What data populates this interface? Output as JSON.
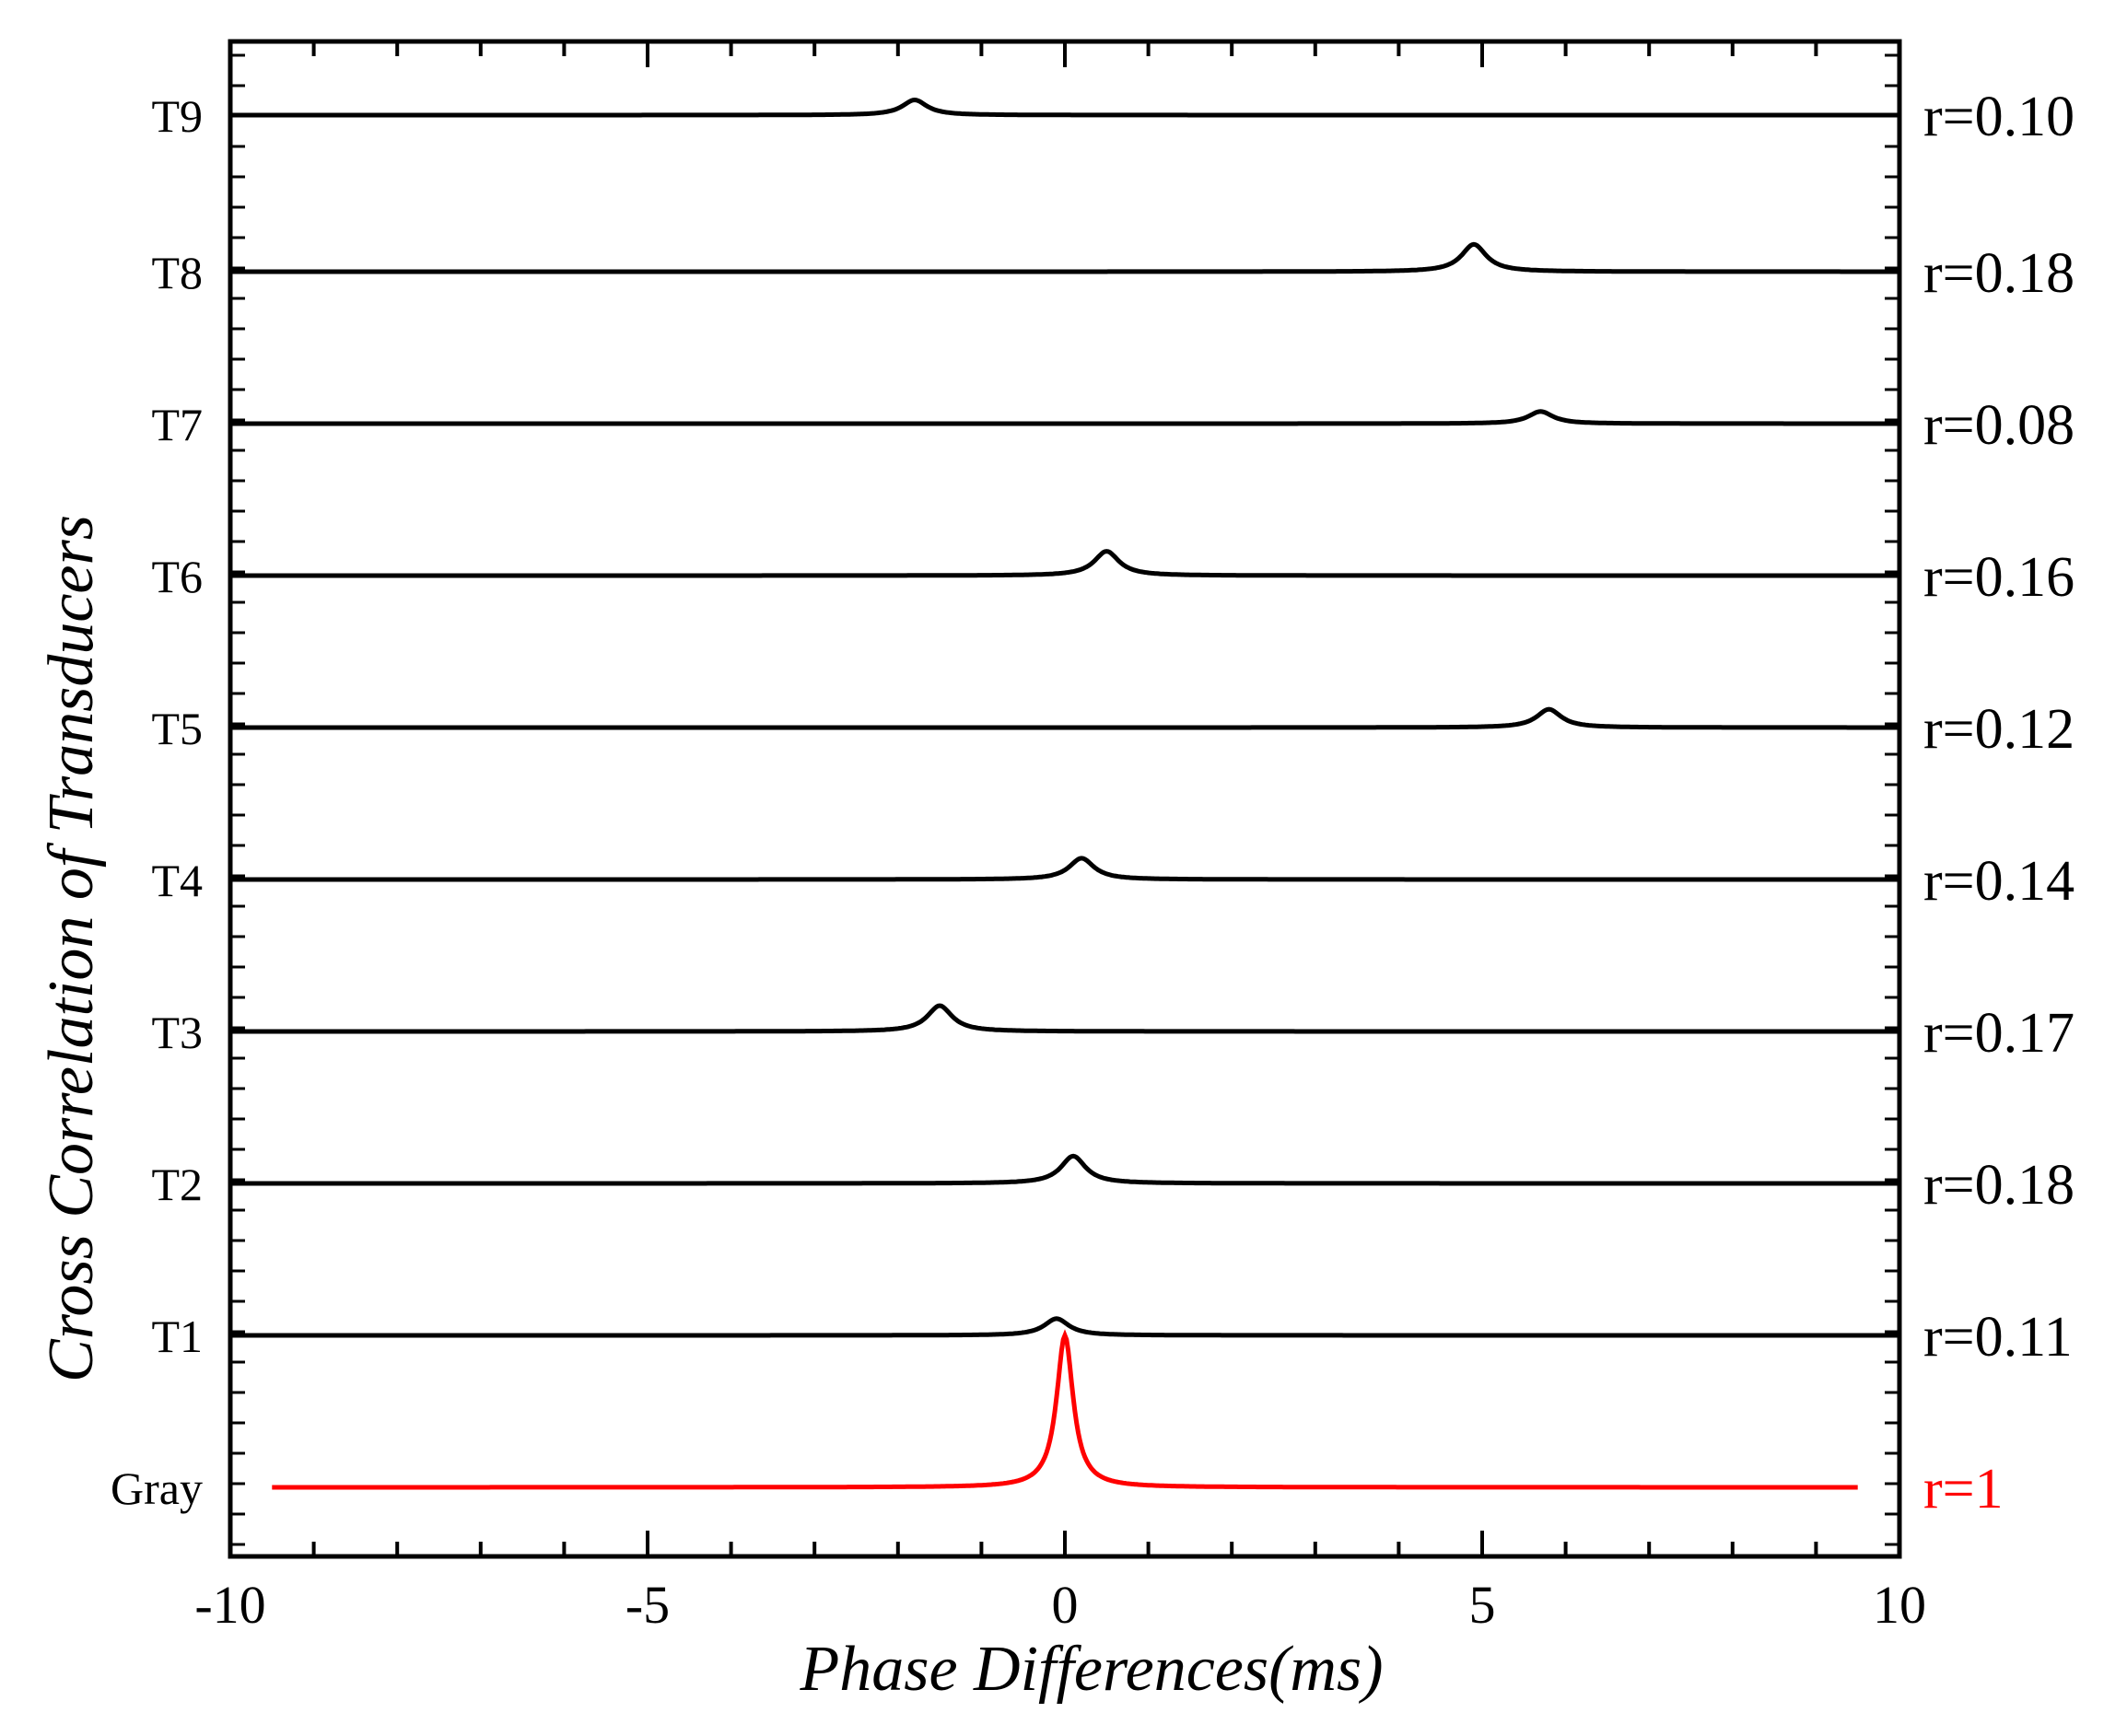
{
  "chart_data": {
    "type": "line",
    "title": "",
    "xlabel": "Phase Differences(ms)",
    "ylabel": "Cross Correlation of Transducers",
    "xlim": [
      -10,
      10
    ],
    "x_ticks": [
      "-10",
      "-5",
      "0",
      "5",
      "10"
    ],
    "grid": false,
    "colors": {
      "reference": "#ff0000",
      "trace": "#000000"
    },
    "series": [
      {
        "label": "Gray",
        "r_label": "r=1",
        "peak_x": 0.0,
        "peak_height": 1.0,
        "reference": true
      },
      {
        "label": "T1",
        "r_label": "r=0.11",
        "peak_x": -0.1,
        "peak_height": 0.11
      },
      {
        "label": "T2",
        "r_label": "r=0.18",
        "peak_x": 0.1,
        "peak_height": 0.18
      },
      {
        "label": "T3",
        "r_label": "r=0.17",
        "peak_x": -1.5,
        "peak_height": 0.17
      },
      {
        "label": "T4",
        "r_label": "r=0.14",
        "peak_x": 0.2,
        "peak_height": 0.14
      },
      {
        "label": "T5",
        "r_label": "r=0.12",
        "peak_x": 5.8,
        "peak_height": 0.12
      },
      {
        "label": "T6",
        "r_label": "r=0.16",
        "peak_x": 0.5,
        "peak_height": 0.16
      },
      {
        "label": "T7",
        "r_label": "r=0.08",
        "peak_x": 5.7,
        "peak_height": 0.08
      },
      {
        "label": "T8",
        "r_label": "r=0.18",
        "peak_x": 4.9,
        "peak_height": 0.18
      },
      {
        "label": "T9",
        "r_label": "r=0.10",
        "peak_x": -1.8,
        "peak_height": 0.1
      }
    ]
  }
}
